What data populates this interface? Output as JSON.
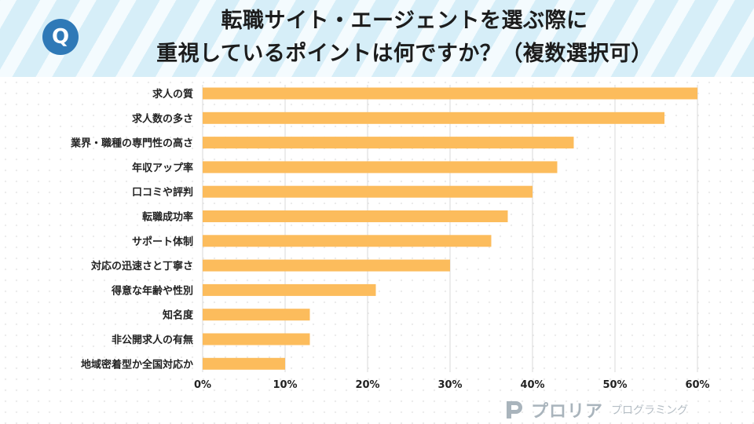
{
  "header": {
    "badge": "Q",
    "title_line1": "転職サイト・エージェントを選ぶ際に",
    "title_line2": "重視しているポイントは何ですか？（複数選択可）"
  },
  "chart_data": {
    "type": "bar",
    "orientation": "horizontal",
    "title": "転職サイト・エージェントを選ぶ際に重視しているポイントは何ですか？（複数選択可）",
    "categories": [
      "求人の質",
      "求人数の多さ",
      "業界・職種の専門性の高さ",
      "年収アップ率",
      "口コミや評判",
      "転職成功率",
      "サポート体制",
      "対応の迅速さと丁寧さ",
      "得意な年齢や性別",
      "知名度",
      "非公開求人の有無",
      "地域密着型か全国対応か"
    ],
    "values": [
      60,
      56,
      45,
      43,
      40,
      37,
      35,
      30,
      21,
      13,
      13,
      10
    ],
    "xlim": [
      0,
      60
    ],
    "xticks": [
      0,
      10,
      20,
      30,
      40,
      50,
      60
    ],
    "tick_suffix": "%",
    "grid": true,
    "bar_color": "#fcbc5c",
    "grid_color": "#d9d9d9"
  },
  "logo": {
    "name": "プロリア",
    "sub": "プログラミング",
    "color": "#a9b4bc"
  }
}
